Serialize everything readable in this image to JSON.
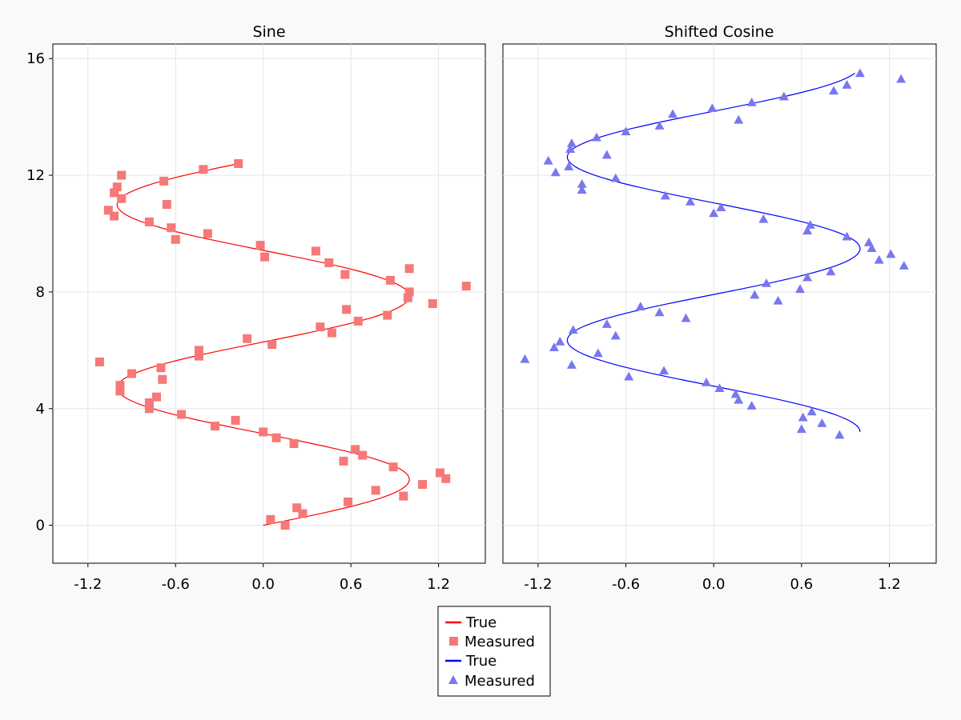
{
  "chart_data": [
    {
      "type": "line",
      "title": "Sine",
      "xlabel": "",
      "ylabel": "",
      "xlim": [
        -1.44,
        1.52
      ],
      "ylim": [
        -1.3,
        16.5
      ],
      "xticks": [
        -1.2,
        -0.6,
        0.0,
        0.6,
        1.2
      ],
      "xtick_labels": [
        "-1.2",
        "-0.6",
        "0.0",
        "0.6",
        "1.2"
      ],
      "yticks": [
        0,
        4,
        8,
        12,
        16
      ],
      "ytick_labels": [
        "0",
        "4",
        "8",
        "12",
        "16"
      ],
      "grid": true,
      "color": "#ff0000",
      "marker_color": "#f77878",
      "marker": "square",
      "series": [
        {
          "name": "True",
          "kind": "line",
          "x_expr": "sin(y)",
          "y_range": [
            0,
            12.4
          ]
        },
        {
          "name": "Measured",
          "kind": "scatter",
          "points": [
            [
              0.05,
              0.2
            ],
            [
              0.15,
              0.0
            ],
            [
              0.27,
              0.4
            ],
            [
              0.23,
              0.6
            ],
            [
              0.58,
              0.8
            ],
            [
              0.96,
              1.0
            ],
            [
              0.77,
              1.2
            ],
            [
              1.09,
              1.4
            ],
            [
              1.25,
              1.6
            ],
            [
              1.21,
              1.8
            ],
            [
              0.89,
              2.0
            ],
            [
              0.55,
              2.2
            ],
            [
              0.68,
              2.4
            ],
            [
              0.63,
              2.6
            ],
            [
              0.21,
              2.8
            ],
            [
              0.09,
              3.0
            ],
            [
              0.0,
              3.2
            ],
            [
              -0.19,
              3.6
            ],
            [
              -0.33,
              3.4
            ],
            [
              -0.56,
              3.8
            ],
            [
              -0.78,
              4.0
            ],
            [
              -0.78,
              4.2
            ],
            [
              -0.73,
              4.4
            ],
            [
              -0.98,
              4.6
            ],
            [
              -0.98,
              4.8
            ],
            [
              -0.69,
              5.0
            ],
            [
              -0.9,
              5.2
            ],
            [
              -0.7,
              5.4
            ],
            [
              -1.12,
              5.6
            ],
            [
              -0.44,
              5.8
            ],
            [
              -0.44,
              6.0
            ],
            [
              0.06,
              6.2
            ],
            [
              -0.11,
              6.4
            ],
            [
              0.47,
              6.6
            ],
            [
              0.39,
              6.8
            ],
            [
              0.65,
              7.0
            ],
            [
              0.85,
              7.2
            ],
            [
              0.57,
              7.4
            ],
            [
              1.16,
              7.6
            ],
            [
              0.99,
              7.8
            ],
            [
              1.0,
              8.0
            ],
            [
              1.39,
              8.2
            ],
            [
              0.87,
              8.4
            ],
            [
              0.56,
              8.6
            ],
            [
              1.0,
              8.8
            ],
            [
              0.45,
              9.0
            ],
            [
              0.01,
              9.2
            ],
            [
              0.36,
              9.4
            ],
            [
              -0.02,
              9.6
            ],
            [
              -0.6,
              9.8
            ],
            [
              -0.38,
              10.0
            ],
            [
              -0.63,
              10.2
            ],
            [
              -0.78,
              10.4
            ],
            [
              -1.02,
              10.6
            ],
            [
              -1.06,
              10.8
            ],
            [
              -0.66,
              11.0
            ],
            [
              -0.97,
              11.2
            ],
            [
              -1.02,
              11.4
            ],
            [
              -1.0,
              11.6
            ],
            [
              -0.68,
              11.8
            ],
            [
              -0.97,
              12.0
            ],
            [
              -0.41,
              12.2
            ],
            [
              -0.17,
              12.4
            ]
          ]
        }
      ]
    },
    {
      "type": "line",
      "title": "Shifted Cosine",
      "xlabel": "",
      "ylabel": "",
      "xlim": [
        -1.44,
        1.52
      ],
      "ylim": [
        -1.3,
        16.5
      ],
      "xticks": [
        -1.2,
        -0.6,
        0.0,
        0.6,
        1.2
      ],
      "xtick_labels": [
        "-1.2",
        "-0.6",
        "0.0",
        "0.6",
        "1.2"
      ],
      "yticks": [
        0,
        4,
        8,
        12,
        16
      ],
      "grid": true,
      "color": "#0000ff",
      "marker_color": "#7878ee",
      "marker": "triangle",
      "series": [
        {
          "name": "True",
          "kind": "line",
          "x_expr": "cos(y - 3.2)",
          "y_range": [
            3.2,
            15.5
          ]
        },
        {
          "name": "Measured",
          "kind": "scatter",
          "points": [
            [
              0.86,
              3.1
            ],
            [
              0.6,
              3.3
            ],
            [
              0.74,
              3.5
            ],
            [
              0.61,
              3.7
            ],
            [
              0.67,
              3.9
            ],
            [
              0.26,
              4.1
            ],
            [
              0.17,
              4.3
            ],
            [
              0.15,
              4.5
            ],
            [
              0.04,
              4.7
            ],
            [
              -0.05,
              4.9
            ],
            [
              -0.58,
              5.1
            ],
            [
              -0.34,
              5.3
            ],
            [
              -0.97,
              5.5
            ],
            [
              -1.29,
              5.7
            ],
            [
              -0.79,
              5.9
            ],
            [
              -1.09,
              6.1
            ],
            [
              -1.05,
              6.3
            ],
            [
              -0.67,
              6.5
            ],
            [
              -0.96,
              6.7
            ],
            [
              -0.73,
              6.9
            ],
            [
              -0.19,
              7.1
            ],
            [
              -0.37,
              7.3
            ],
            [
              -0.5,
              7.5
            ],
            [
              0.44,
              7.7
            ],
            [
              0.28,
              7.9
            ],
            [
              0.59,
              8.1
            ],
            [
              0.36,
              8.3
            ],
            [
              0.64,
              8.5
            ],
            [
              0.8,
              8.7
            ],
            [
              1.3,
              8.9
            ],
            [
              1.13,
              9.1
            ],
            [
              1.21,
              9.3
            ],
            [
              1.08,
              9.5
            ],
            [
              1.06,
              9.7
            ],
            [
              0.91,
              9.9
            ],
            [
              0.64,
              10.1
            ],
            [
              0.66,
              10.3
            ],
            [
              0.34,
              10.5
            ],
            [
              0.0,
              10.7
            ],
            [
              0.05,
              10.9
            ],
            [
              -0.16,
              11.1
            ],
            [
              -0.33,
              11.3
            ],
            [
              -0.9,
              11.5
            ],
            [
              -0.9,
              11.7
            ],
            [
              -0.67,
              11.9
            ],
            [
              -1.08,
              12.1
            ],
            [
              -0.99,
              12.3
            ],
            [
              -1.13,
              12.5
            ],
            [
              -0.73,
              12.7
            ],
            [
              -0.98,
              12.9
            ],
            [
              -0.97,
              13.1
            ],
            [
              -0.8,
              13.3
            ],
            [
              -0.6,
              13.5
            ],
            [
              -0.37,
              13.7
            ],
            [
              -0.28,
              14.1
            ],
            [
              0.17,
              13.9
            ],
            [
              -0.01,
              14.3
            ],
            [
              0.26,
              14.5
            ],
            [
              0.48,
              14.7
            ],
            [
              0.82,
              14.9
            ],
            [
              0.91,
              15.1
            ],
            [
              1.28,
              15.3
            ],
            [
              1.0,
              15.5
            ]
          ]
        }
      ]
    }
  ],
  "legend": {
    "placement": "bottom-center",
    "entries": [
      {
        "label": "True",
        "kind": "line",
        "color": "#ff0000"
      },
      {
        "label": "Measured",
        "kind": "square",
        "color": "#f77878"
      },
      {
        "label": "True",
        "kind": "line",
        "color": "#0000ff"
      },
      {
        "label": "Measured",
        "kind": "triangle",
        "color": "#7878ee"
      }
    ]
  }
}
